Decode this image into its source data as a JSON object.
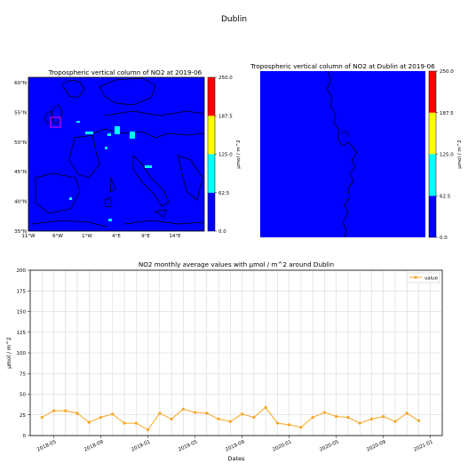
{
  "page": {
    "title": "Dublin"
  },
  "colorbar": {
    "colors": [
      "#0000ff",
      "#00ffff",
      "#ffff00",
      "#ff0000"
    ],
    "ticks": [
      "0.0",
      "62.5",
      "125.0",
      "187.5",
      "250.0"
    ],
    "label": "µmol / m^2"
  },
  "map_left": {
    "title": "Tropospheric vertical column of NO2 at 2019-06",
    "lat_ticks": [
      "60°N",
      "55°N",
      "50°N",
      "45°N",
      "40°N",
      "35°N"
    ],
    "lon_ticks": [
      "11°W",
      "6°W",
      "1°W",
      "4°E",
      "9°E",
      "14°E"
    ],
    "land_color": "#0000ff",
    "hotspot_color": "#00ffff",
    "highlight_color": "#ff00ff"
  },
  "map_right": {
    "title": "Tropospheric vertical column of NO2 at Dublin at 2019-06",
    "background_color": "#0000ff"
  },
  "chart_data": {
    "type": "line",
    "title": "NO2 monthly average values with µmol / m^2 around Dublin",
    "xlabel": "Dates",
    "ylabel": "µmol / m^2",
    "ylim": [
      0,
      200
    ],
    "yticks": [
      "0",
      "25",
      "50",
      "75",
      "100",
      "125",
      "150",
      "175",
      "200"
    ],
    "xticks": [
      "2018-05",
      "2018-09",
      "2019-01",
      "2019-05",
      "2019-09",
      "2020-01",
      "2020-05",
      "2020-09",
      "2021-01"
    ],
    "legend": "top-right",
    "grid": true,
    "series": [
      {
        "name": "value",
        "color": "#f5a623",
        "x": [
          "2018-04",
          "2018-05",
          "2018-06",
          "2018-07",
          "2018-08",
          "2018-09",
          "2018-10",
          "2018-11",
          "2018-12",
          "2019-01",
          "2019-02",
          "2019-03",
          "2019-04",
          "2019-05",
          "2019-06",
          "2019-07",
          "2019-08",
          "2019-09",
          "2019-10",
          "2019-11",
          "2019-12",
          "2020-01",
          "2020-02",
          "2020-03",
          "2020-04",
          "2020-05",
          "2020-06",
          "2020-07",
          "2020-08",
          "2020-09",
          "2020-10",
          "2020-11",
          "2020-12"
        ],
        "values": [
          22,
          30,
          30,
          27,
          16,
          22,
          26,
          15,
          15,
          7,
          27,
          20,
          32,
          28,
          27,
          20,
          17,
          26,
          22,
          34,
          15,
          13,
          10,
          22,
          28,
          23,
          22,
          15,
          20,
          23,
          17,
          27,
          18
        ]
      }
    ]
  }
}
